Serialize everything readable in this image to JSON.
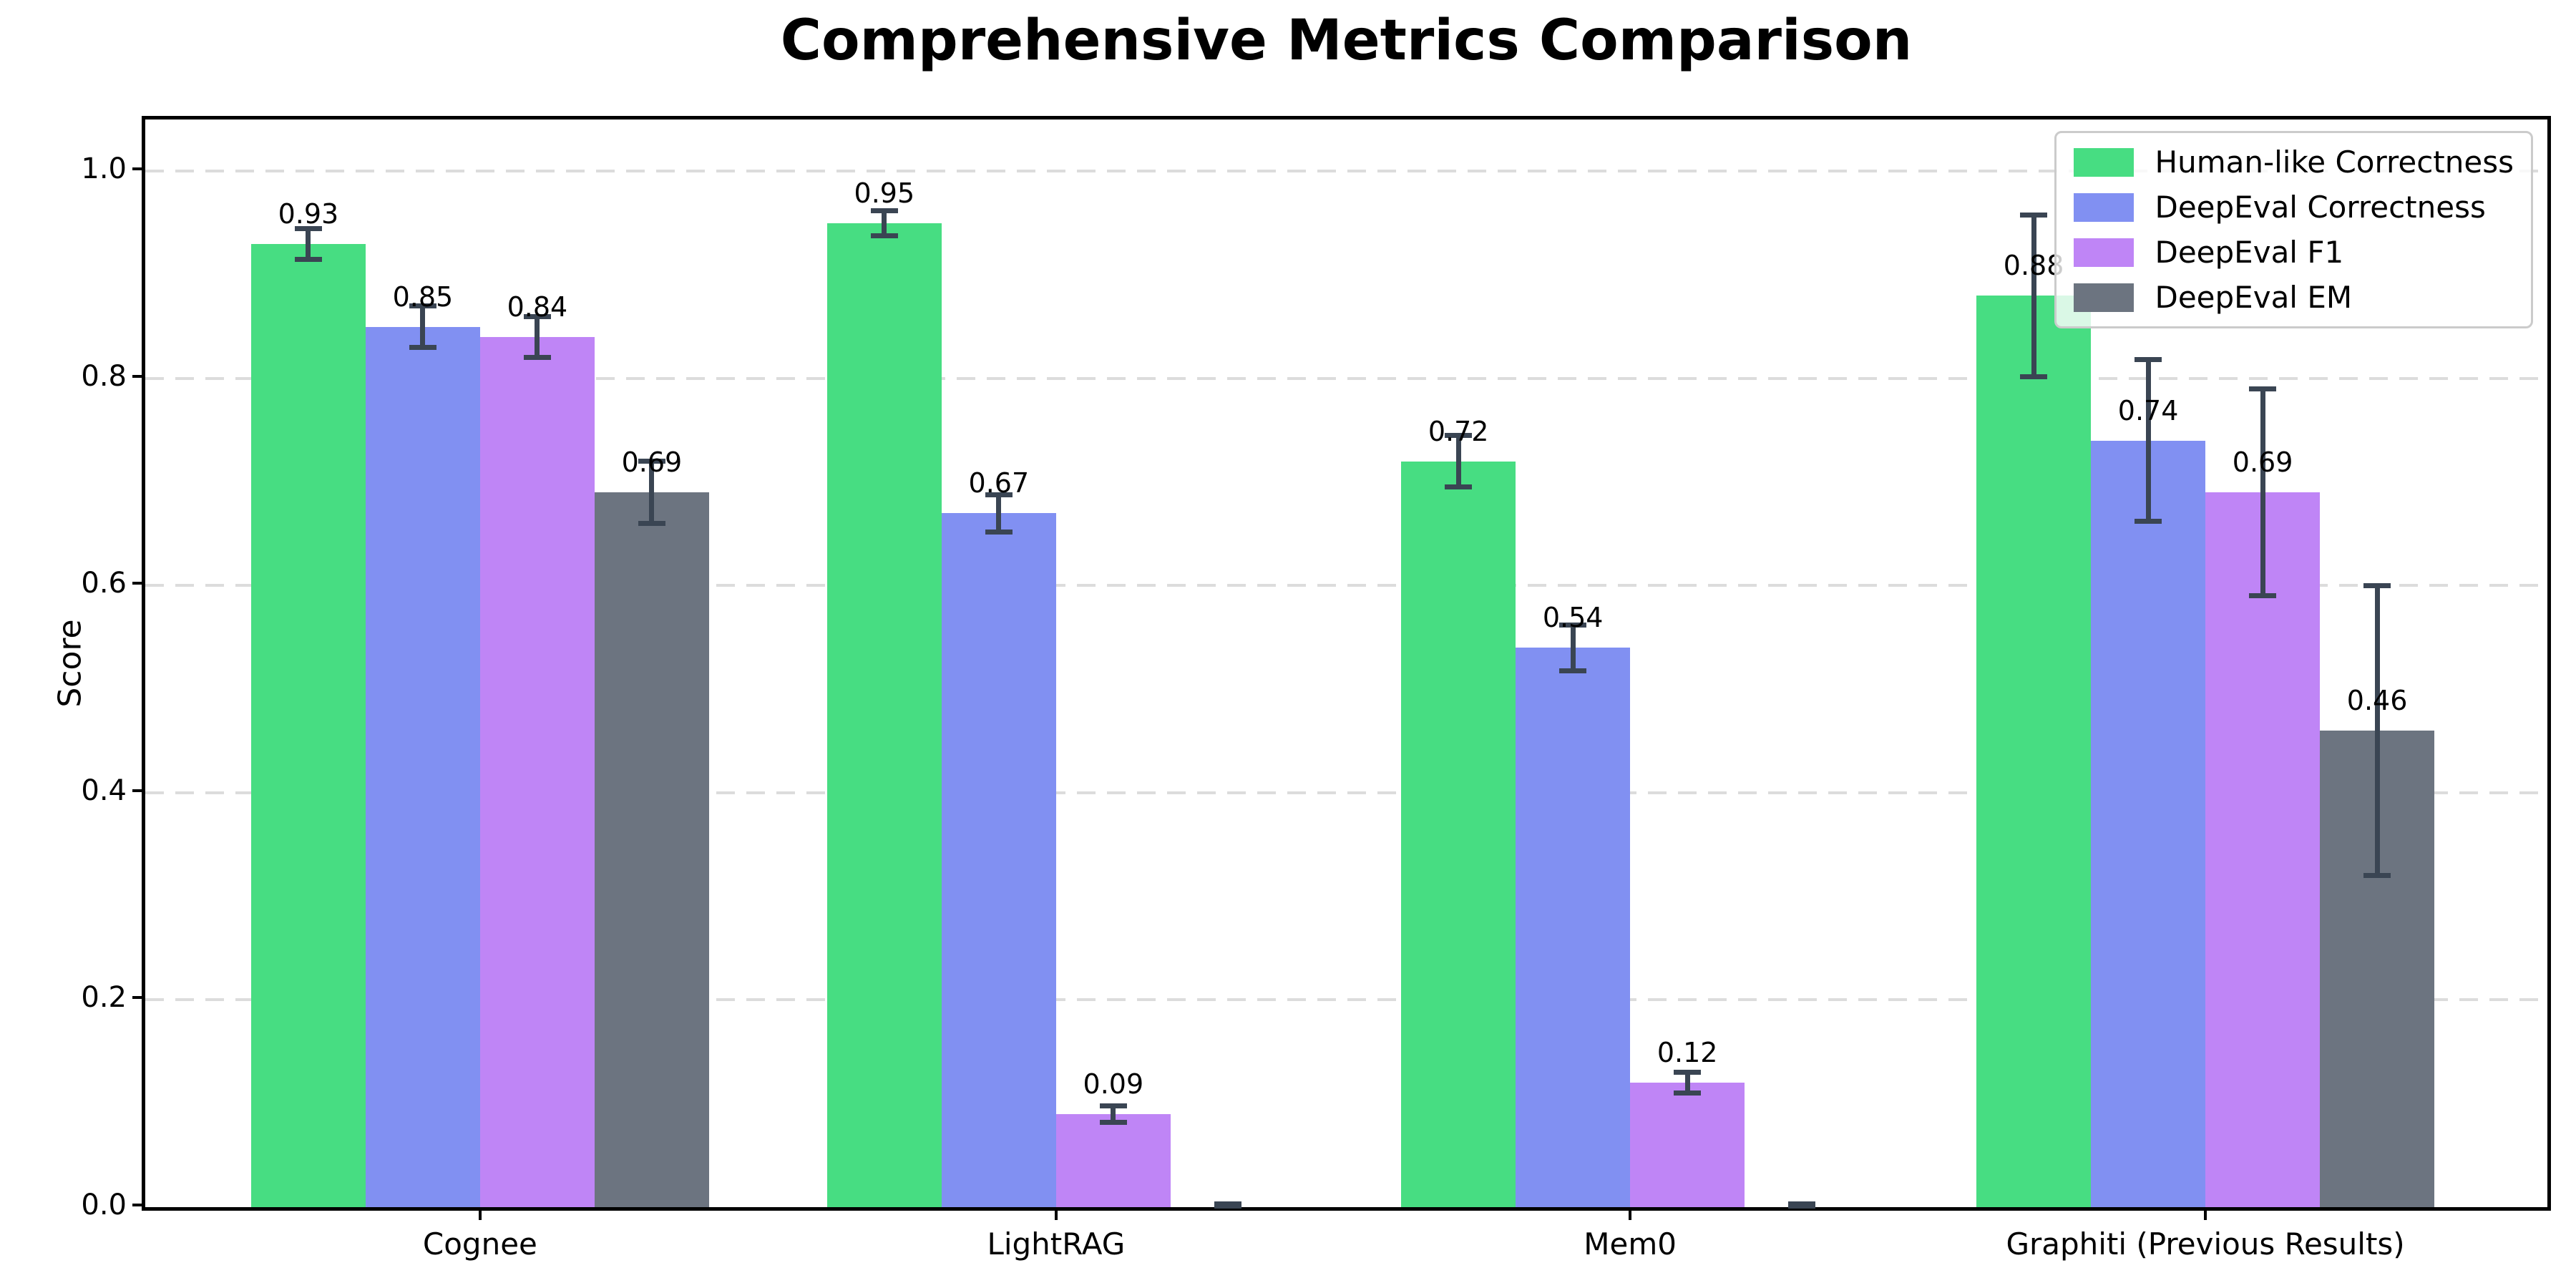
{
  "chart_data": {
    "type": "bar",
    "title": "Comprehensive Metrics Comparison",
    "ylabel": "Score",
    "xlabel": "",
    "ylim": [
      0,
      1.05
    ],
    "grid": {
      "axis": "y",
      "style": "dashed",
      "color": "#dcdcdc"
    },
    "legend_position": "upper-right",
    "error_bar_color": "#3a4553",
    "yticks": [
      {
        "value": 0.0,
        "label": "0.0"
      },
      {
        "value": 0.2,
        "label": "0.2"
      },
      {
        "value": 0.4,
        "label": "0.4"
      },
      {
        "value": 0.6,
        "label": "0.6"
      },
      {
        "value": 0.8,
        "label": "0.8"
      },
      {
        "value": 1.0,
        "label": "1.0"
      }
    ],
    "categories": [
      "Cognee",
      "LightRAG",
      "Mem0",
      "Graphiti (Previous Results)"
    ],
    "series": [
      {
        "name": "Human-like Correctness",
        "color": "#47dd82",
        "values": [
          0.93,
          0.95,
          0.72,
          0.88
        ],
        "errors": [
          0.015,
          0.012,
          0.025,
          0.078
        ],
        "value_labels": [
          "0.93",
          "0.95",
          "0.72",
          "0.88"
        ]
      },
      {
        "name": "DeepEval Correctness",
        "color": "#8190f2",
        "values": [
          0.85,
          0.67,
          0.54,
          0.74
        ],
        "errors": [
          0.02,
          0.018,
          0.022,
          0.078
        ],
        "value_labels": [
          "0.85",
          "0.67",
          "0.54",
          "0.74"
        ]
      },
      {
        "name": "DeepEval F1",
        "color": "#bf85f6",
        "values": [
          0.84,
          0.09,
          0.12,
          0.69
        ],
        "errors": [
          0.02,
          0.008,
          0.01,
          0.1
        ],
        "value_labels": [
          "0.84",
          "0.09",
          "0.12",
          "0.69"
        ]
      },
      {
        "name": "DeepEval EM",
        "color": "#6c7480",
        "values": [
          0.69,
          0.0,
          0.0,
          0.46
        ],
        "errors": [
          0.03,
          0.003,
          0.003,
          0.14
        ],
        "value_labels": [
          "0.69",
          "",
          "",
          "0.46"
        ]
      }
    ]
  }
}
